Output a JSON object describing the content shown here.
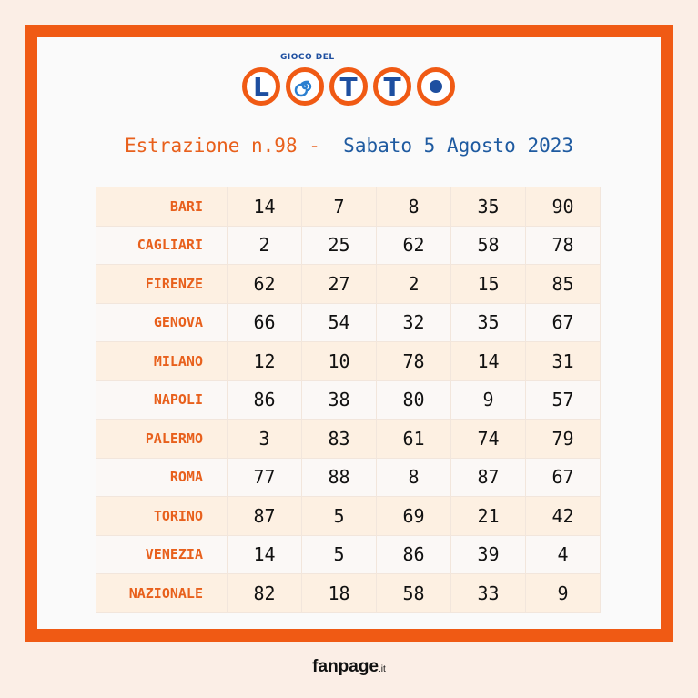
{
  "logo": {
    "top": "GIOCO DEL",
    "letters": [
      "L",
      "T",
      "T"
    ]
  },
  "header": {
    "draw": "Estrazione n.98 -",
    "date": "Sabato 5 Agosto 2023"
  },
  "table": {
    "rows": [
      [
        "BARI",
        14,
        7,
        8,
        35,
        90
      ],
      [
        "CAGLIARI",
        2,
        25,
        62,
        58,
        78
      ],
      [
        "FIRENZE",
        62,
        27,
        2,
        15,
        85
      ],
      [
        "GENOVA",
        66,
        54,
        32,
        35,
        67
      ],
      [
        "MILANO",
        12,
        10,
        78,
        14,
        31
      ],
      [
        "NAPOLI",
        86,
        38,
        80,
        9,
        57
      ],
      [
        "PALERMO",
        3,
        83,
        61,
        74,
        79
      ],
      [
        "ROMA",
        77,
        88,
        8,
        87,
        67
      ],
      [
        "TORINO",
        87,
        5,
        69,
        21,
        42
      ],
      [
        "VENEZIA",
        14,
        5,
        86,
        39,
        4
      ],
      [
        "NAZIONALE",
        82,
        18,
        58,
        33,
        9
      ]
    ]
  },
  "footer": {
    "brand": "fanpage",
    "tld": ".it"
  }
}
